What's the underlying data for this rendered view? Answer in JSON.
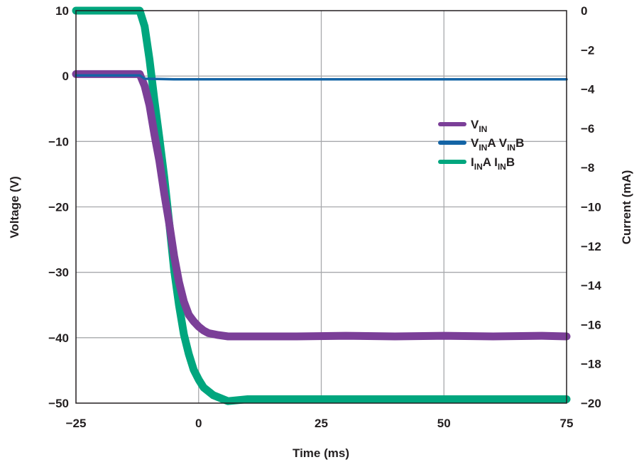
{
  "chart_data": {
    "type": "line",
    "title": "",
    "xlabel": "Time (ms)",
    "ylabel_left": "Voltage (V)",
    "ylabel_right": "Current (mA)",
    "xlim": [
      -25,
      75
    ],
    "ylim_left": [
      -50,
      10
    ],
    "ylim_right": [
      -20,
      0
    ],
    "grid": true,
    "legend_position": "right-center",
    "x_ticks": [
      "-25",
      "0",
      "25",
      "50",
      "75"
    ],
    "y_left_ticks": [
      "10",
      "0",
      "-10",
      "-20",
      "-30",
      "-40",
      "-50"
    ],
    "y_right_ticks": [
      "0",
      "-2",
      "-4",
      "-6",
      "-8",
      "-10",
      "-12",
      "-14",
      "-16",
      "-18",
      "-20"
    ],
    "series": [
      {
        "name": "VIN",
        "name_main": "V",
        "name_sub": "IN",
        "axis": "left",
        "color": "#7b3f98",
        "points": [
          [
            -25,
            0.3
          ],
          [
            -20,
            0.3
          ],
          [
            -15,
            0.3
          ],
          [
            -12,
            0.3
          ],
          [
            -11,
            -1.5
          ],
          [
            -10,
            -4.5
          ],
          [
            -9,
            -9
          ],
          [
            -8,
            -13
          ],
          [
            -7,
            -18
          ],
          [
            -6,
            -22.5
          ],
          [
            -5,
            -27.5
          ],
          [
            -4,
            -31.5
          ],
          [
            -3,
            -34.5
          ],
          [
            -2,
            -36.5
          ],
          [
            -1,
            -37.5
          ],
          [
            0,
            -38.3
          ],
          [
            1,
            -38.9
          ],
          [
            2,
            -39.3
          ],
          [
            4,
            -39.6
          ],
          [
            6,
            -39.8
          ],
          [
            10,
            -39.8
          ],
          [
            20,
            -39.8
          ],
          [
            30,
            -39.7
          ],
          [
            40,
            -39.8
          ],
          [
            50,
            -39.7
          ],
          [
            60,
            -39.8
          ],
          [
            70,
            -39.7
          ],
          [
            75,
            -39.8
          ]
        ]
      },
      {
        "name": "VINA VINB",
        "name_parts": [
          {
            "main": "V",
            "sub": "IN"
          },
          {
            "main": "A V",
            "sub": "IN"
          },
          {
            "main": "B",
            "sub": ""
          }
        ],
        "axis": "left",
        "color": "#1464a5",
        "points": [
          [
            -25,
            0.1
          ],
          [
            -15,
            0.1
          ],
          [
            -12,
            0.1
          ],
          [
            -11,
            -0.4
          ],
          [
            -5,
            -0.5
          ],
          [
            0,
            -0.5
          ],
          [
            10,
            -0.5
          ],
          [
            25,
            -0.5
          ],
          [
            50,
            -0.5
          ],
          [
            75,
            -0.5
          ]
        ]
      },
      {
        "name": "IINA IINB",
        "name_parts": [
          {
            "main": "I",
            "sub": "IN"
          },
          {
            "main": "A I",
            "sub": "IN"
          },
          {
            "main": "B",
            "sub": ""
          }
        ],
        "axis": "right",
        "color": "#00a67e",
        "points": [
          [
            -25,
            0
          ],
          [
            -14,
            0
          ],
          [
            -12,
            0
          ],
          [
            -11,
            -0.8
          ],
          [
            -10,
            -2.5
          ],
          [
            -9,
            -4.6
          ],
          [
            -8,
            -6.5
          ],
          [
            -7,
            -8.5
          ],
          [
            -6,
            -10.8
          ],
          [
            -5,
            -13.2
          ],
          [
            -4,
            -15.0
          ],
          [
            -3,
            -16.5
          ],
          [
            -2,
            -17.5
          ],
          [
            -1,
            -18.3
          ],
          [
            0,
            -18.8
          ],
          [
            1,
            -19.2
          ],
          [
            2,
            -19.4
          ],
          [
            3,
            -19.6
          ],
          [
            5,
            -19.8
          ],
          [
            6,
            -19.9
          ],
          [
            10,
            -19.8
          ],
          [
            20,
            -19.8
          ],
          [
            30,
            -19.8
          ],
          [
            40,
            -19.8
          ],
          [
            50,
            -19.8
          ],
          [
            60,
            -19.8
          ],
          [
            70,
            -19.8
          ],
          [
            75,
            -19.8
          ]
        ]
      }
    ]
  }
}
